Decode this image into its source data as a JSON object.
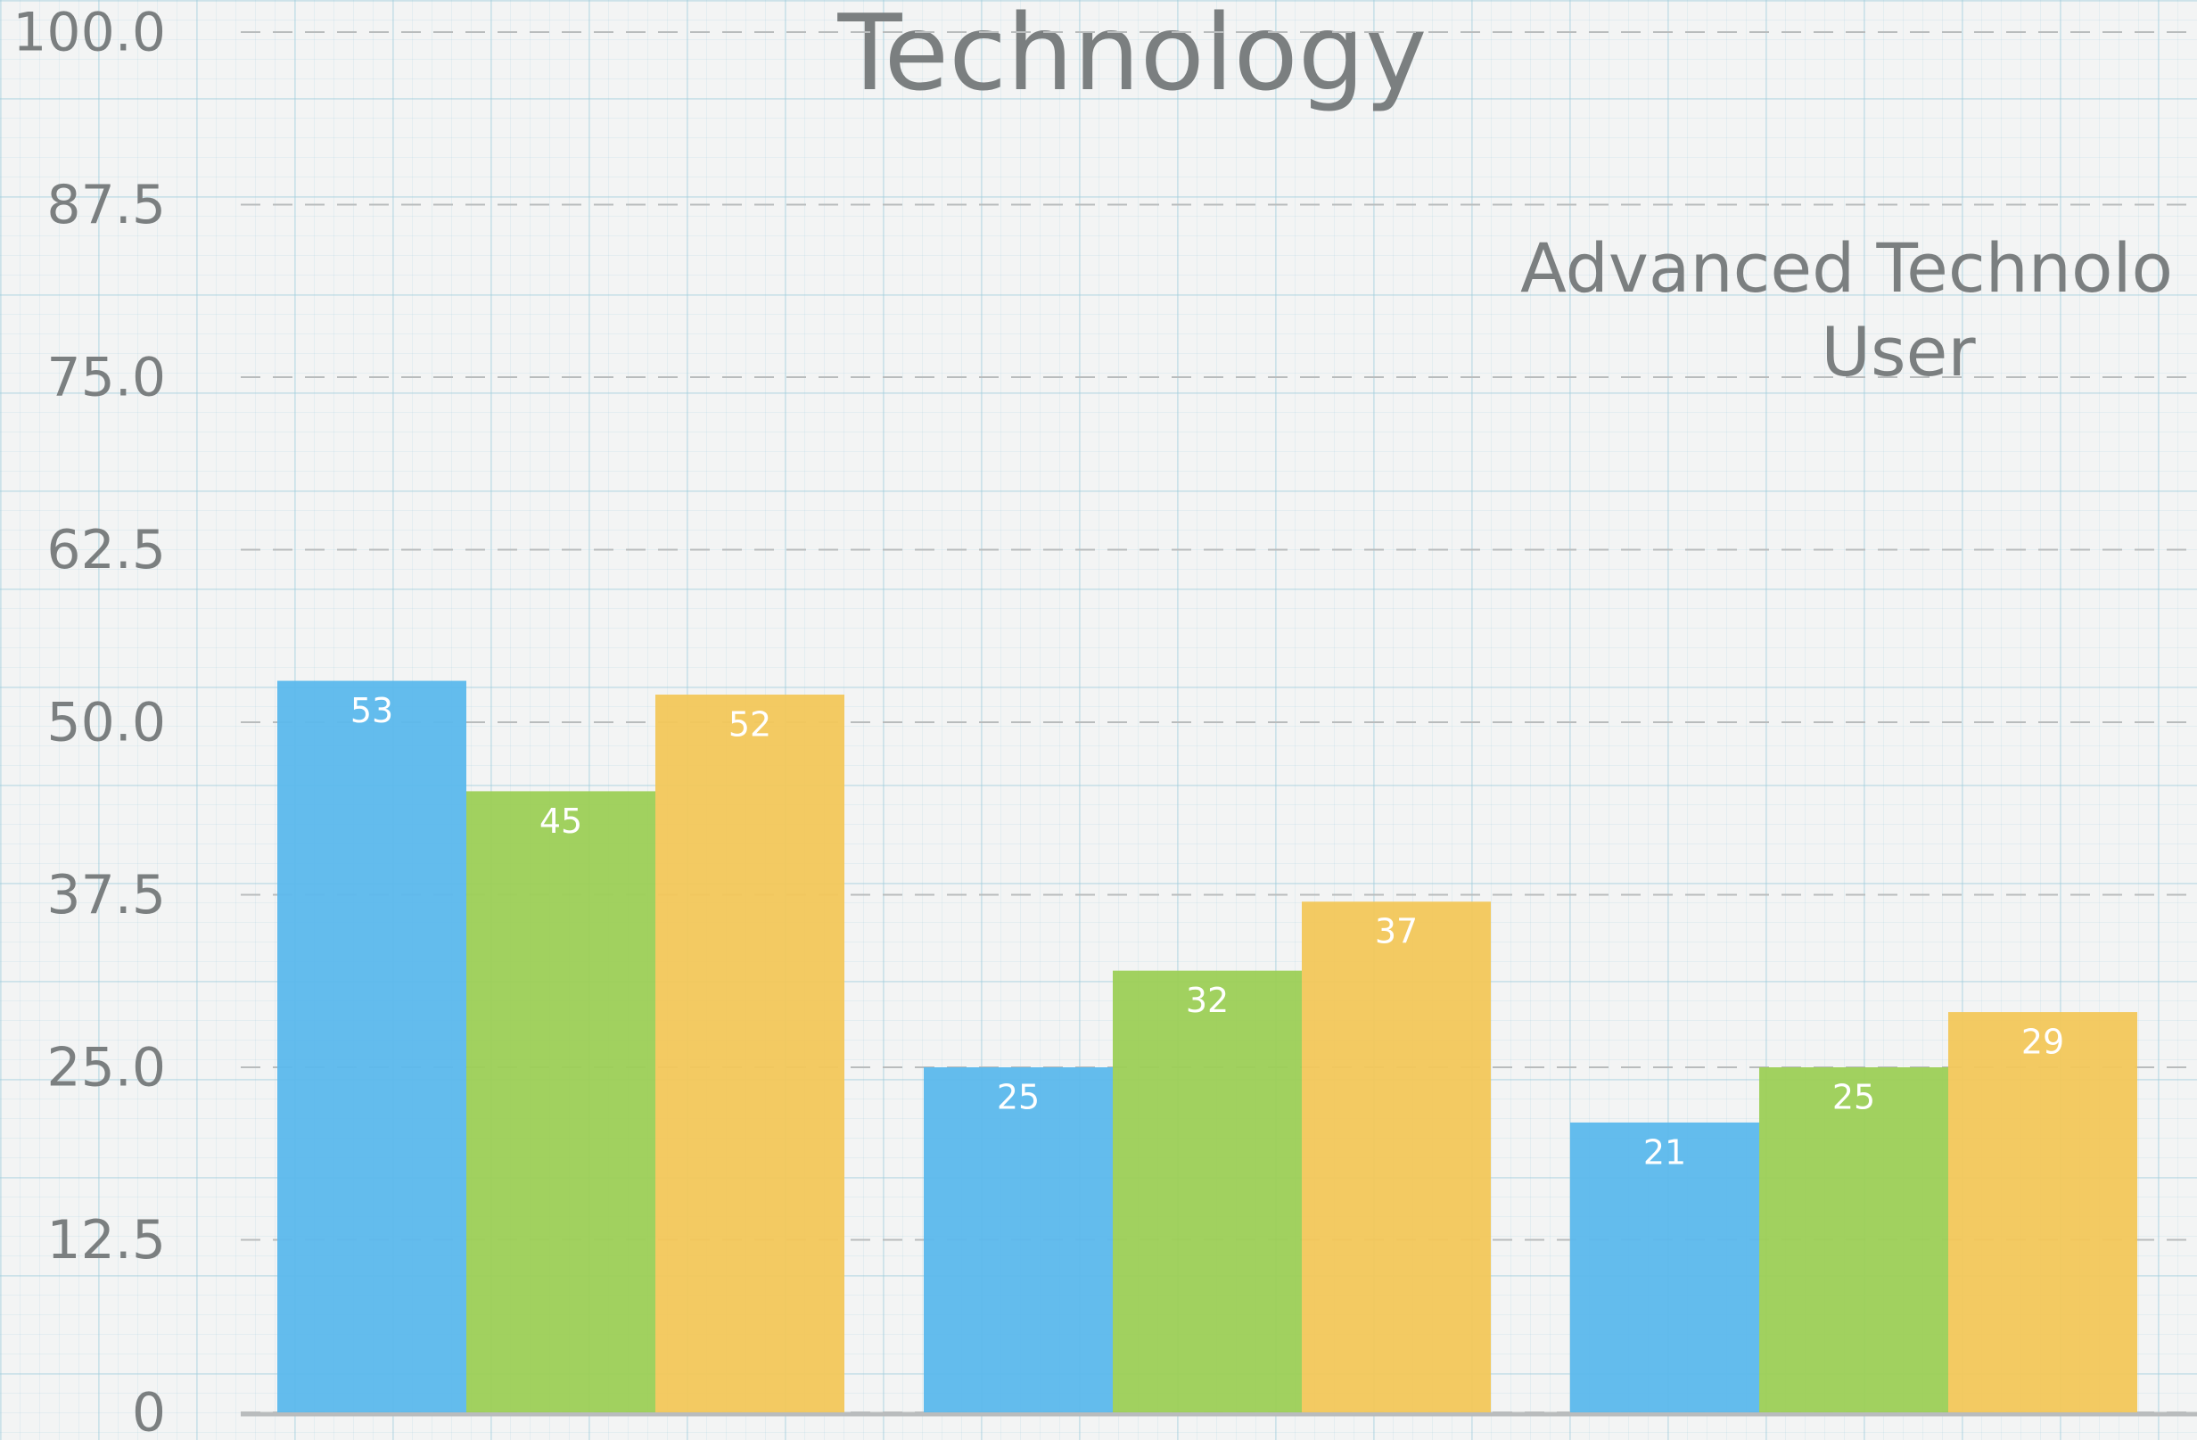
{
  "chart_data": {
    "type": "bar",
    "title": "Technology",
    "annotations": [
      "Advanced Technolo",
      "User"
    ],
    "categories": [
      null,
      null,
      null
    ],
    "series": [
      {
        "color": "#5bb8ec",
        "values": [
          53,
          25,
          21
        ]
      },
      {
        "color": "#9ccf56",
        "values": [
          45,
          32,
          25
        ]
      },
      {
        "color": "#f2c75a",
        "values": [
          52,
          37,
          29
        ]
      }
    ],
    "ylim": [
      0,
      100
    ],
    "yticks": [
      0,
      12.5,
      {
        "value": 25,
        "label": "25.0"
      },
      37.5,
      {
        "value": 50,
        "label": "50.0"
      },
      62.5,
      {
        "value": 75,
        "label": "75.0"
      },
      87.5,
      {
        "value": 100,
        "label": "100.0"
      }
    ],
    "grid": true
  }
}
